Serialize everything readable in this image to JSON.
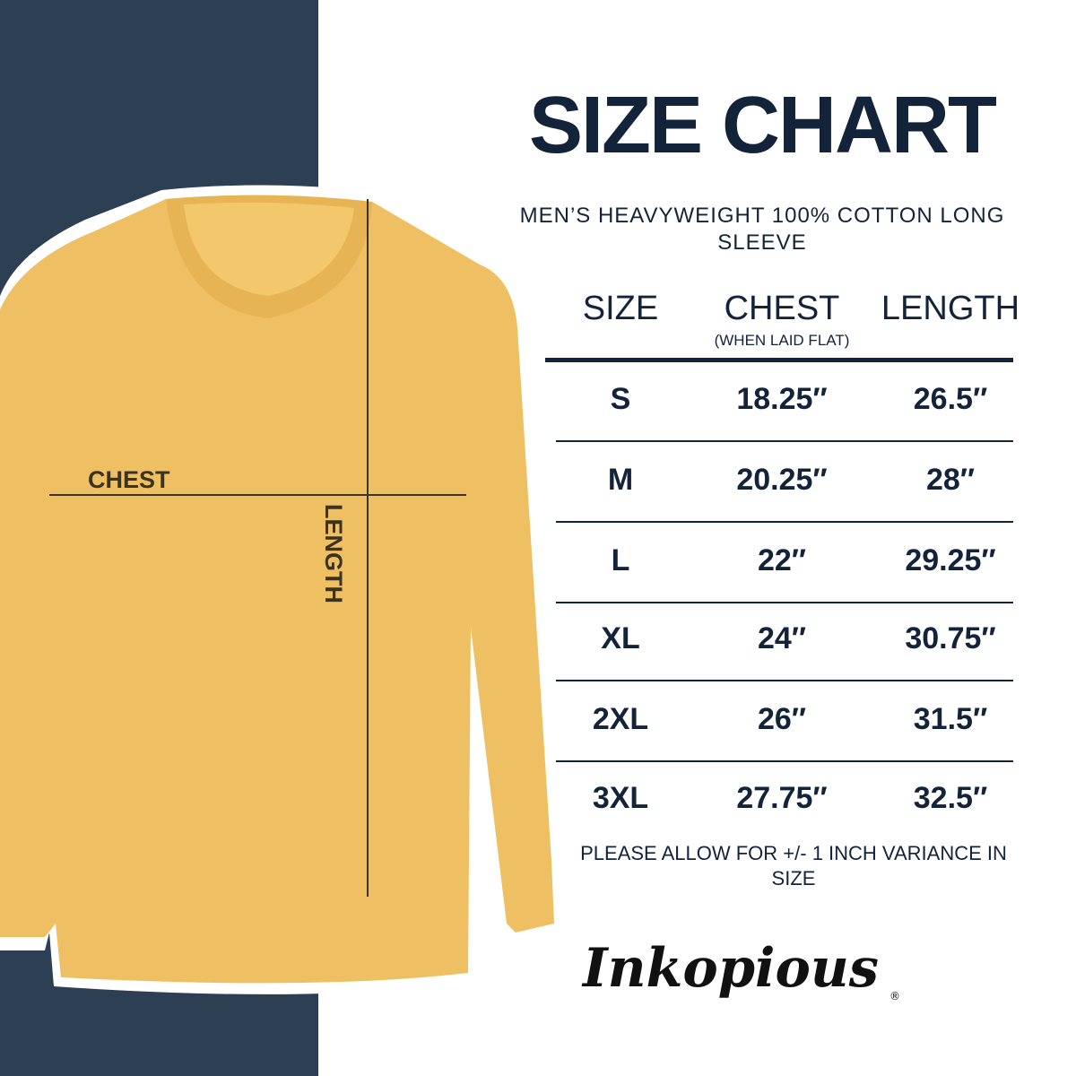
{
  "colors": {
    "navy_panel": "#2c3f53",
    "shirt": "#efc063",
    "text": "#13233a"
  },
  "shirt_labels": {
    "chest": "CHEST",
    "length": "LENGTH"
  },
  "title": "SIZE CHART",
  "subtitle": "MEN’S HEAVYWEIGHT 100% COTTON LONG SLEEVE",
  "table": {
    "headers": [
      {
        "label": "SIZE",
        "sub": ""
      },
      {
        "label": "CHEST",
        "sub": "(WHEN LAID FLAT)"
      },
      {
        "label": "LENGTH",
        "sub": ""
      }
    ],
    "rows": [
      [
        "S",
        "18.25″",
        "26.5″"
      ],
      [
        "M",
        "20.25″",
        "28″"
      ],
      [
        "L",
        "22″",
        "29.25″"
      ],
      [
        "XL",
        "24″",
        "30.75″"
      ],
      [
        "2XL",
        "26″",
        "31.5″"
      ],
      [
        "3XL",
        "27.75″",
        "32.5″"
      ]
    ]
  },
  "note": "PLEASE ALLOW FOR +/- 1 INCH VARIANCE IN SIZE",
  "logo": {
    "text": "Inkopious",
    "mark": "®"
  }
}
